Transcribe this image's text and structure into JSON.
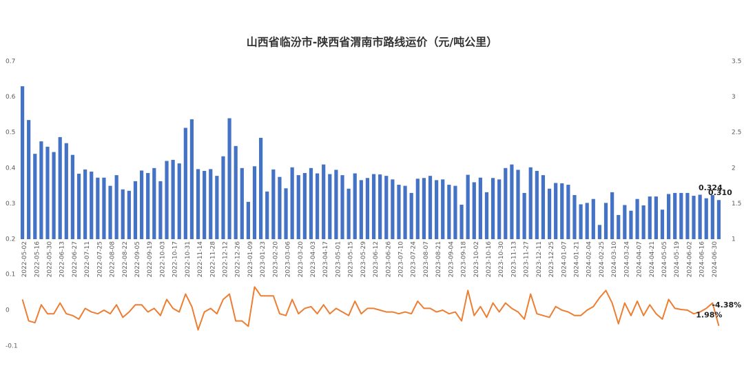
{
  "chart_data": [
    {
      "type": "bar",
      "title": "山西省临汾市-陕西省渭南市路线运价（元/吨公里）",
      "color": "#4472c4",
      "grid": false,
      "categories": [
        "2022-05-02",
        null,
        "2022-05-16",
        null,
        "2022-05-30",
        null,
        "2022-06-13",
        null,
        "2022-06-27",
        null,
        "2022-07-11",
        null,
        "2022-07-25",
        null,
        "2022-08-08",
        null,
        "2022-08-22",
        null,
        "2022-09-05",
        null,
        "2022-09-19",
        null,
        "2022-10-03",
        null,
        "2022-10-17",
        null,
        "2022-10-31",
        null,
        "2022-11-14",
        null,
        "2022-11-28",
        null,
        "2022-12-12",
        null,
        "2022-12-26",
        null,
        "2023-01-09",
        null,
        "2023-01-23",
        null,
        "2023-02-20",
        null,
        "2023-03-06",
        null,
        "2023-03-20",
        null,
        "2023-04-03",
        null,
        "2023-04-17",
        null,
        "2023-05-01",
        null,
        "2023-05-15",
        null,
        "2023-05-29",
        null,
        "2023-06-12",
        null,
        "2023-06-26",
        null,
        "2023-07-10",
        null,
        "2023-07-24",
        null,
        "2023-08-07",
        null,
        "2023-08-21",
        null,
        "2023-09-04",
        null,
        "2023-09-18",
        null,
        "2023-10-02",
        null,
        "2023-10-16",
        null,
        "2023-10-30",
        null,
        "2023-11-13",
        null,
        "2023-11-27",
        null,
        "2023-12-11",
        null,
        "2023-12-25",
        null,
        "2024-01-07",
        null,
        "2024-01-21",
        null,
        "2024-02-04",
        null,
        "2024-02-25",
        null,
        "2024-03-10",
        null,
        "2024-03-24",
        null,
        "2024-04-07",
        null,
        "2024-04-21",
        null,
        "2024-05-05",
        null,
        "2024-05-19",
        null,
        "2024-06-02",
        null,
        "2024-06-16",
        null,
        "2024-06-30",
        null
      ],
      "values": [
        0.63,
        0.535,
        0.44,
        0.475,
        0.46,
        0.445,
        0.487,
        0.47,
        0.437,
        0.384,
        0.396,
        0.39,
        0.373,
        0.373,
        0.35,
        0.38,
        0.34,
        0.336,
        0.363,
        0.393,
        0.386,
        0.4,
        0.363,
        0.42,
        0.423,
        0.413,
        0.513,
        0.537,
        0.397,
        0.392,
        0.397,
        0.378,
        0.433,
        0.54,
        0.462,
        0.4,
        0.305,
        0.405,
        0.485,
        0.334,
        0.396,
        0.375,
        0.343,
        0.402,
        0.38,
        0.386,
        0.4,
        0.385,
        0.41,
        0.383,
        0.395,
        0.38,
        0.342,
        0.385,
        0.366,
        0.372,
        0.383,
        0.382,
        0.378,
        0.368,
        0.353,
        0.35,
        0.33,
        0.37,
        0.372,
        0.378,
        0.366,
        0.368,
        0.353,
        0.35,
        0.297,
        0.381,
        0.36,
        0.373,
        0.332,
        0.372,
        0.368,
        0.4,
        0.41,
        0.395,
        0.33,
        0.402,
        0.392,
        0.38,
        0.342,
        0.358,
        0.357,
        0.353,
        0.324,
        0.298,
        0.302,
        0.313,
        0.24,
        0.302,
        0.332,
        0.268,
        0.296,
        0.28,
        0.313,
        0.295,
        0.32,
        0.32,
        0.283,
        0.327,
        0.33,
        0.33,
        0.33,
        0.322,
        0.325,
        0.315,
        0.324,
        0.31
      ],
      "value_labels": [
        null,
        null,
        null,
        null,
        null,
        null,
        null,
        null,
        null,
        null,
        null,
        null,
        null,
        null,
        null,
        null,
        null,
        null,
        null,
        null,
        null,
        null,
        null,
        null,
        null,
        null,
        null,
        null,
        null,
        null,
        null,
        null,
        null,
        null,
        null,
        null,
        null,
        null,
        null,
        null,
        null,
        null,
        null,
        null,
        null,
        null,
        null,
        null,
        null,
        null,
        null,
        null,
        null,
        null,
        null,
        null,
        null,
        null,
        null,
        null,
        null,
        null,
        null,
        null,
        null,
        null,
        null,
        null,
        null,
        null,
        null,
        null,
        null,
        null,
        null,
        null,
        null,
        null,
        null,
        null,
        null,
        null,
        null,
        null,
        null,
        null,
        null,
        null,
        null,
        null,
        null,
        null,
        null,
        null,
        null,
        null,
        null,
        null,
        null,
        null,
        null,
        null,
        null,
        null,
        null,
        null,
        null,
        null,
        null,
        null,
        "0.324",
        "0.310"
      ],
      "ylim": [
        0.2,
        0.7
      ],
      "yticks": [
        0.2,
        0.3,
        0.4,
        0.5,
        0.6,
        0.7
      ],
      "y2lim": [
        1,
        3.5
      ],
      "y2ticks": [
        1,
        1.5,
        2,
        2.5,
        3,
        3.5
      ]
    },
    {
      "type": "line",
      "color": "#ed7d31",
      "grid": false,
      "values": [
        0.03,
        -0.03,
        -0.035,
        0.015,
        -0.01,
        -0.01,
        0.02,
        -0.01,
        -0.015,
        -0.025,
        0.005,
        -0.005,
        -0.01,
        0,
        -0.01,
        0.015,
        -0.02,
        -0.005,
        0.015,
        0.015,
        -0.005,
        0.005,
        -0.015,
        0.03,
        0.005,
        -0.005,
        0.045,
        0.01,
        -0.055,
        -0.005,
        0.005,
        -0.01,
        0.03,
        0.045,
        -0.03,
        -0.03,
        -0.045,
        0.065,
        0.04,
        0.04,
        0.04,
        -0.01,
        -0.015,
        0.03,
        -0.01,
        0.005,
        0.01,
        -0.01,
        0.015,
        -0.01,
        0.005,
        -0.005,
        -0.015,
        0.025,
        -0.01,
        0.005,
        0.005,
        0,
        -0.005,
        -0.005,
        -0.01,
        -0.005,
        -0.01,
        0.025,
        0.005,
        0.005,
        -0.005,
        0,
        -0.01,
        -0.005,
        -0.03,
        0.055,
        -0.015,
        0.01,
        -0.02,
        0.02,
        -0.005,
        0.02,
        0.005,
        -0.005,
        -0.025,
        0.045,
        -0.01,
        -0.015,
        -0.02,
        0.01,
        0,
        -0.005,
        -0.015,
        -0.015,
        0,
        0.01,
        0.035,
        0.055,
        0.02,
        -0.038,
        0.02,
        -0.015,
        0.025,
        -0.015,
        0.015,
        -0.01,
        -0.025,
        0.03,
        0.005,
        0.002,
        0,
        -0.01,
        -0.005,
        0.005,
        0.0198,
        -0.0438
      ],
      "value_labels": [
        null,
        null,
        null,
        null,
        null,
        null,
        null,
        null,
        null,
        null,
        null,
        null,
        null,
        null,
        null,
        null,
        null,
        null,
        null,
        null,
        null,
        null,
        null,
        null,
        null,
        null,
        null,
        null,
        null,
        null,
        null,
        null,
        null,
        null,
        null,
        null,
        null,
        null,
        null,
        null,
        null,
        null,
        null,
        null,
        null,
        null,
        null,
        null,
        null,
        null,
        null,
        null,
        null,
        null,
        null,
        null,
        null,
        null,
        null,
        null,
        null,
        null,
        null,
        null,
        null,
        null,
        null,
        null,
        null,
        null,
        null,
        null,
        null,
        null,
        null,
        null,
        null,
        null,
        null,
        null,
        null,
        null,
        null,
        null,
        null,
        null,
        null,
        null,
        null,
        null,
        null,
        null,
        null,
        null,
        null,
        null,
        null,
        null,
        null,
        null,
        null,
        null,
        null,
        null,
        null,
        null,
        null,
        null,
        null,
        null,
        "1.98%",
        "-4.38%"
      ],
      "ylim": [
        -0.1,
        0.1
      ],
      "yticks": [
        -0.1,
        0,
        0.1
      ]
    }
  ]
}
